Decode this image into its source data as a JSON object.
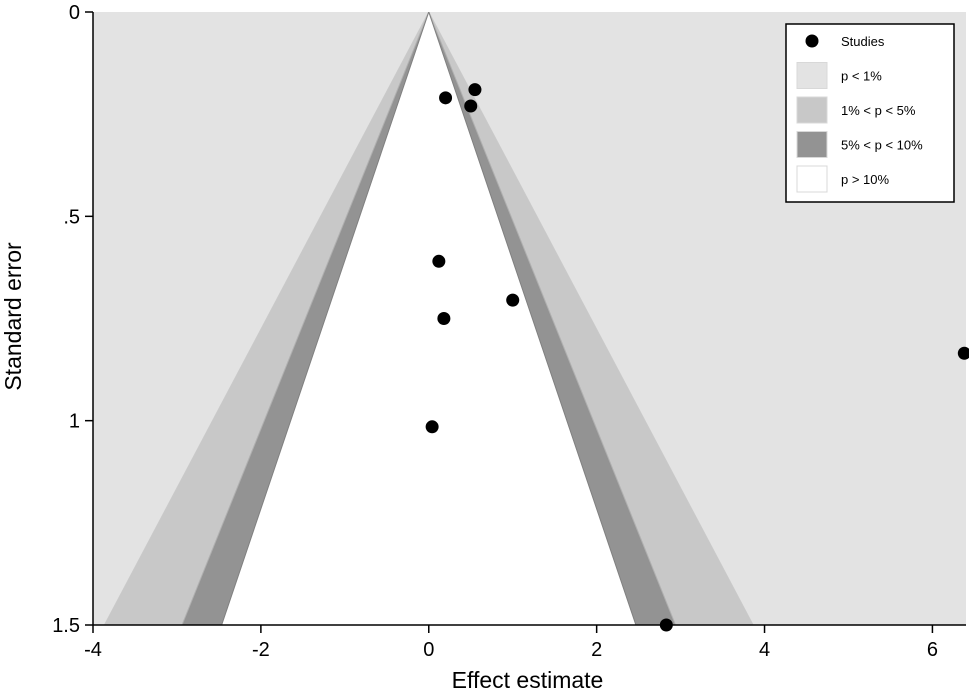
{
  "chart_data": {
    "type": "scatter",
    "title": "",
    "xlabel": "Effect estimate",
    "ylabel": "Standard error",
    "xlim": [
      -4,
      6.4
    ],
    "ylim": [
      0,
      1.5
    ],
    "y_reversed": true,
    "x_ticks": [
      {
        "value": -4,
        "label": "-4"
      },
      {
        "value": -2,
        "label": "-2"
      },
      {
        "value": 0,
        "label": "0"
      },
      {
        "value": 2,
        "label": "2"
      },
      {
        "value": 4,
        "label": "4"
      },
      {
        "value": 6,
        "label": "6"
      }
    ],
    "y_ticks": [
      {
        "value": 0,
        "label": "0"
      },
      {
        "value": 0.5,
        "label": ".5"
      },
      {
        "value": 1,
        "label": "1"
      },
      {
        "value": 1.5,
        "label": "1.5"
      }
    ],
    "funnel_center": 0,
    "contours": [
      {
        "name": "p < 1%",
        "z": 2.576,
        "color": "#e3e3e3"
      },
      {
        "name": "1% < p < 5%",
        "z": 1.96,
        "color": "#c8c8c8"
      },
      {
        "name": "5% < p < 10%",
        "z": 1.645,
        "color": "#939393"
      },
      {
        "name": "p > 10%",
        "color": "#ffffff"
      }
    ],
    "series": [
      {
        "name": "Studies",
        "color": "#000000",
        "points": [
          {
            "x": 0.55,
            "y": 0.19
          },
          {
            "x": 0.2,
            "y": 0.21
          },
          {
            "x": 0.5,
            "y": 0.23
          },
          {
            "x": 0.12,
            "y": 0.61
          },
          {
            "x": 1.0,
            "y": 0.705
          },
          {
            "x": 0.18,
            "y": 0.75
          },
          {
            "x": 0.04,
            "y": 1.015
          },
          {
            "x": 2.83,
            "y": 1.5
          },
          {
            "x": 6.38,
            "y": 0.835
          }
        ]
      }
    ],
    "legend": {
      "position": "top-right",
      "entries": [
        {
          "label": "Studies",
          "kind": "marker",
          "color": "#000000"
        },
        {
          "label": "p < 1%",
          "kind": "swatch",
          "color": "#e3e3e3"
        },
        {
          "label": "1% < p < 5%",
          "kind": "swatch",
          "color": "#c8c8c8"
        },
        {
          "label": "5% < p < 10%",
          "kind": "swatch",
          "color": "#939393"
        },
        {
          "label": "p > 10%",
          "kind": "swatch",
          "color": "#ffffff"
        }
      ]
    },
    "grid": false
  }
}
